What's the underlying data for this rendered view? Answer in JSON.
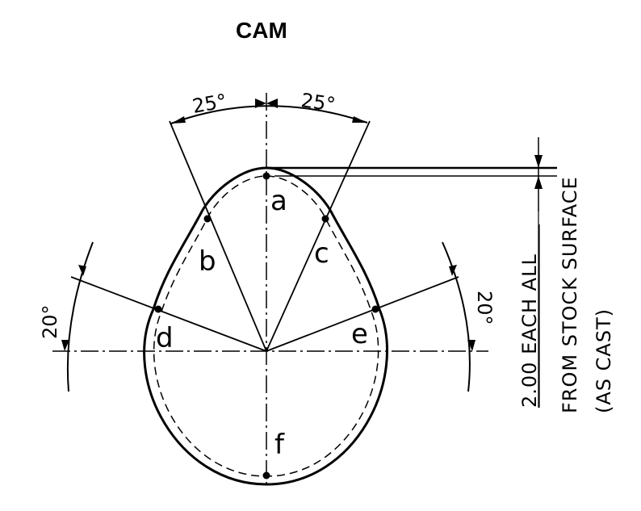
{
  "title": "CAM",
  "points": {
    "a": "a",
    "b": "b",
    "c": "c",
    "d": "d",
    "e": "e",
    "f": "f"
  },
  "angles": {
    "top_left": "25°",
    "top_right": "25°",
    "left": "20°",
    "right": "20°"
  },
  "note": {
    "line1": "2.00 EACH ALL",
    "line2": "FROM STOCK SURFACE",
    "line3": "(AS CAST)"
  }
}
